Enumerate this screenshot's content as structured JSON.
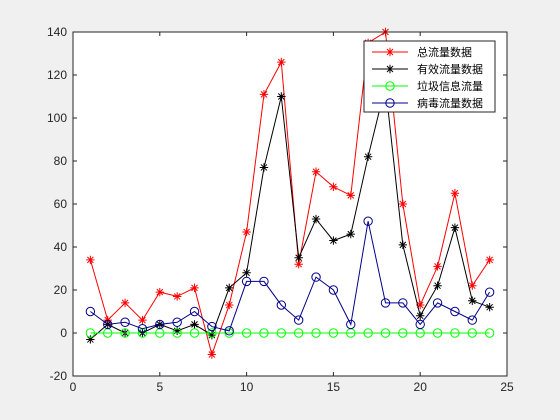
{
  "chart_data": {
    "type": "line",
    "title": "",
    "xlabel": "",
    "ylabel": "",
    "xlim": [
      0,
      25
    ],
    "ylim": [
      -20,
      140
    ],
    "xticks": [
      0,
      5,
      10,
      15,
      20,
      25
    ],
    "yticks": [
      -20,
      0,
      20,
      40,
      60,
      80,
      100,
      120,
      140
    ],
    "grid": false,
    "legend_position": "top-right",
    "x": [
      1,
      2,
      3,
      4,
      5,
      6,
      7,
      8,
      9,
      10,
      11,
      12,
      13,
      14,
      15,
      16,
      17,
      18,
      19,
      20,
      21,
      22,
      23,
      24
    ],
    "series": [
      {
        "name": "总流量数据",
        "color": "#ff0000",
        "marker": "asterisk",
        "values": [
          34,
          6,
          14,
          6,
          19,
          17,
          21,
          -10,
          13,
          47,
          111,
          126,
          32,
          75,
          68,
          64,
          135,
          140,
          60,
          13,
          31,
          65,
          22,
          34
        ]
      },
      {
        "name": "有效流量数据",
        "color": "#000000",
        "marker": "asterisk",
        "values": [
          -3,
          4,
          0,
          0,
          4,
          1,
          4,
          -1,
          21,
          28,
          77,
          110,
          35,
          53,
          43,
          46,
          82,
          115,
          41,
          8,
          22,
          49,
          15,
          12
        ]
      },
      {
        "name": "垃圾信息流量",
        "color": "#00ff00",
        "marker": "circle",
        "values": [
          0,
          0,
          0,
          0,
          0,
          0,
          0,
          0,
          0,
          0,
          0,
          0,
          0,
          0,
          0,
          0,
          0,
          0,
          0,
          0,
          0,
          0,
          0,
          0
        ]
      },
      {
        "name": "病毒流量数据",
        "color": "#00008b",
        "marker": "circle",
        "values": [
          10,
          4,
          5,
          2,
          4,
          5,
          10,
          3,
          1,
          24,
          24,
          13,
          6,
          26,
          20,
          4,
          52,
          14,
          14,
          4,
          14,
          10,
          6,
          19
        ]
      }
    ]
  }
}
